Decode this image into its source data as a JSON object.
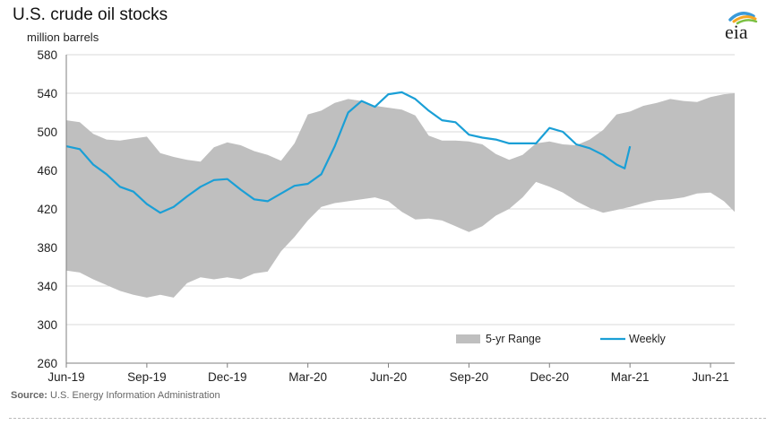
{
  "chart_data": {
    "type": "line",
    "title": "U.S. crude oil stocks",
    "ylabel": "million barrels",
    "source_label": "Source:",
    "source_text": "U.S. Energy Information Administration",
    "ylim": [
      260,
      580
    ],
    "yticks": [
      260,
      300,
      340,
      380,
      420,
      460,
      500,
      540,
      580
    ],
    "xlim": [
      0,
      24.9
    ],
    "xticks": [
      {
        "label": "Jun-19",
        "x": 0
      },
      {
        "label": "Sep-19",
        "x": 3
      },
      {
        "label": "Dec-19",
        "x": 6
      },
      {
        "label": "Mar-20",
        "x": 9
      },
      {
        "label": "Jun-20",
        "x": 12
      },
      {
        "label": "Sep-20",
        "x": 15
      },
      {
        "label": "Dec-20",
        "x": 18
      },
      {
        "label": "Mar-21",
        "x": 21
      },
      {
        "label": "Jun-21",
        "x": 24
      }
    ],
    "grid": "horizontal",
    "legend_placement": "bottom-right",
    "colors": {
      "range": "#bfbfbf",
      "weekly": "#1a9fd6",
      "grid": "#d9d9d9",
      "axis": "#7f7f7f"
    },
    "series": [
      {
        "name": "5-yr Range",
        "kind": "band",
        "x": [
          0,
          0.5,
          1.0,
          1.5,
          2.0,
          2.5,
          3.0,
          3.5,
          4.0,
          4.5,
          5.0,
          5.5,
          6.0,
          6.5,
          7.0,
          7.5,
          8.0,
          8.5,
          9.0,
          9.5,
          10.0,
          10.5,
          11.0,
          11.5,
          12.0,
          12.5,
          13.0,
          13.5,
          14.0,
          14.5,
          15.0,
          15.5,
          16.0,
          16.5,
          17.0,
          17.5,
          18.0,
          18.5,
          19.0,
          19.5,
          20.0,
          20.5,
          21.0,
          21.5,
          22.0,
          22.5,
          23.0,
          23.5,
          24.0,
          24.5,
          24.9
        ],
        "high": [
          512,
          510,
          498,
          492,
          491,
          493,
          495,
          478,
          474,
          471,
          469,
          484,
          489,
          486,
          480,
          476,
          470,
          488,
          518,
          522,
          530,
          534,
          532,
          527,
          525,
          523,
          517,
          496,
          491,
          491,
          490,
          487,
          477,
          471,
          476,
          488,
          490,
          487,
          486,
          492,
          502,
          518,
          521,
          527,
          530,
          534,
          532,
          531,
          536,
          539,
          540
        ],
        "low": [
          356,
          354,
          347,
          341,
          335,
          331,
          328,
          331,
          328,
          343,
          349,
          347,
          349,
          347,
          353,
          355,
          376,
          391,
          408,
          422,
          426,
          428,
          430,
          432,
          428,
          417,
          409,
          410,
          408,
          402,
          396,
          402,
          413,
          420,
          432,
          448,
          443,
          437,
          428,
          421,
          416,
          419,
          422,
          426,
          429,
          430,
          432,
          436,
          437,
          428,
          417
        ]
      },
      {
        "name": "Weekly",
        "kind": "line",
        "x": [
          0,
          0.5,
          1.0,
          1.5,
          2.0,
          2.5,
          3.0,
          3.5,
          4.0,
          4.5,
          5.0,
          5.5,
          6.0,
          6.5,
          7.0,
          7.5,
          8.0,
          8.5,
          9.0,
          9.5,
          10.0,
          10.5,
          11.0,
          11.5,
          12.0,
          12.5,
          13.0,
          13.5,
          14.0,
          14.5,
          15.0,
          15.5,
          16.0,
          16.5,
          17.0,
          17.5,
          18.0,
          18.5,
          19.0,
          19.5,
          20.0,
          20.5,
          20.8,
          21.0
        ],
        "values": [
          485,
          482,
          466,
          456,
          443,
          438,
          425,
          416,
          422,
          433,
          443,
          450,
          451,
          440,
          430,
          428,
          436,
          444,
          446,
          456,
          485,
          520,
          532,
          526,
          539,
          541,
          534,
          522,
          512,
          510,
          497,
          494,
          492,
          488,
          488,
          488,
          504,
          500,
          487,
          483,
          476,
          466,
          462,
          485
        ]
      }
    ]
  }
}
